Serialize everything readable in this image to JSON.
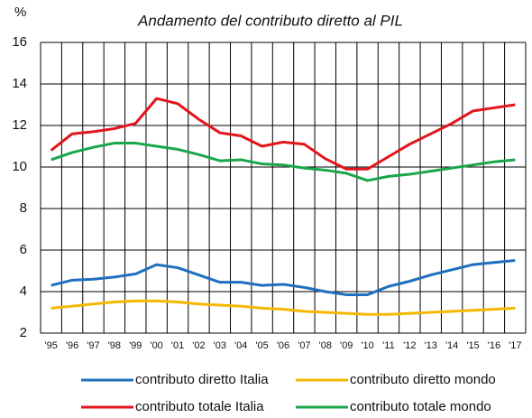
{
  "chart_data": {
    "type": "line",
    "title": "Andamento del contributo diretto al PIL",
    "y_label": "%",
    "categories": [
      "'95",
      "'96",
      "'97",
      "'98",
      "'99",
      "'00",
      "'01",
      "'02",
      "'03",
      "'04",
      "'05",
      "'06",
      "'07",
      "'08",
      "'09",
      "'10",
      "'11",
      "'12",
      "'13",
      "'14",
      "'15",
      "'16",
      "'17"
    ],
    "series": [
      {
        "name": "contributo diretto Italia",
        "color": "#1f6fbf",
        "values": [
          4.3,
          4.55,
          4.6,
          4.7,
          4.85,
          5.3,
          5.15,
          4.8,
          4.45,
          4.45,
          4.3,
          4.35,
          4.2,
          4.0,
          3.85,
          3.85,
          4.25,
          4.5,
          4.8,
          5.05,
          5.3,
          5.4,
          5.5
        ]
      },
      {
        "name": "contributo diretto mondo",
        "color": "#f5b800",
        "values": [
          3.2,
          3.3,
          3.4,
          3.5,
          3.55,
          3.55,
          3.5,
          3.4,
          3.35,
          3.3,
          3.2,
          3.15,
          3.05,
          3.0,
          2.95,
          2.9,
          2.9,
          2.95,
          3.0,
          3.05,
          3.1,
          3.15,
          3.2
        ]
      },
      {
        "name": "contributo totale Italia",
        "color": "#e3141b",
        "values": [
          10.8,
          11.6,
          11.7,
          11.85,
          12.1,
          13.3,
          13.05,
          12.3,
          11.65,
          11.5,
          11.0,
          11.2,
          11.1,
          10.4,
          9.9,
          9.9,
          10.5,
          11.1,
          11.6,
          12.1,
          12.7,
          12.85,
          13.0
        ]
      },
      {
        "name": "contributo totale mondo",
        "color": "#1aa64a",
        "values": [
          10.35,
          10.7,
          10.95,
          11.15,
          11.15,
          11.0,
          10.85,
          10.6,
          10.3,
          10.35,
          10.15,
          10.1,
          9.95,
          9.85,
          9.7,
          9.35,
          9.55,
          9.65,
          9.8,
          9.95,
          10.1,
          10.25,
          10.35
        ]
      }
    ],
    "ylim": [
      2,
      16
    ],
    "yticks": [
      2,
      4,
      6,
      8,
      10,
      12,
      14,
      16
    ],
    "grid": true
  }
}
